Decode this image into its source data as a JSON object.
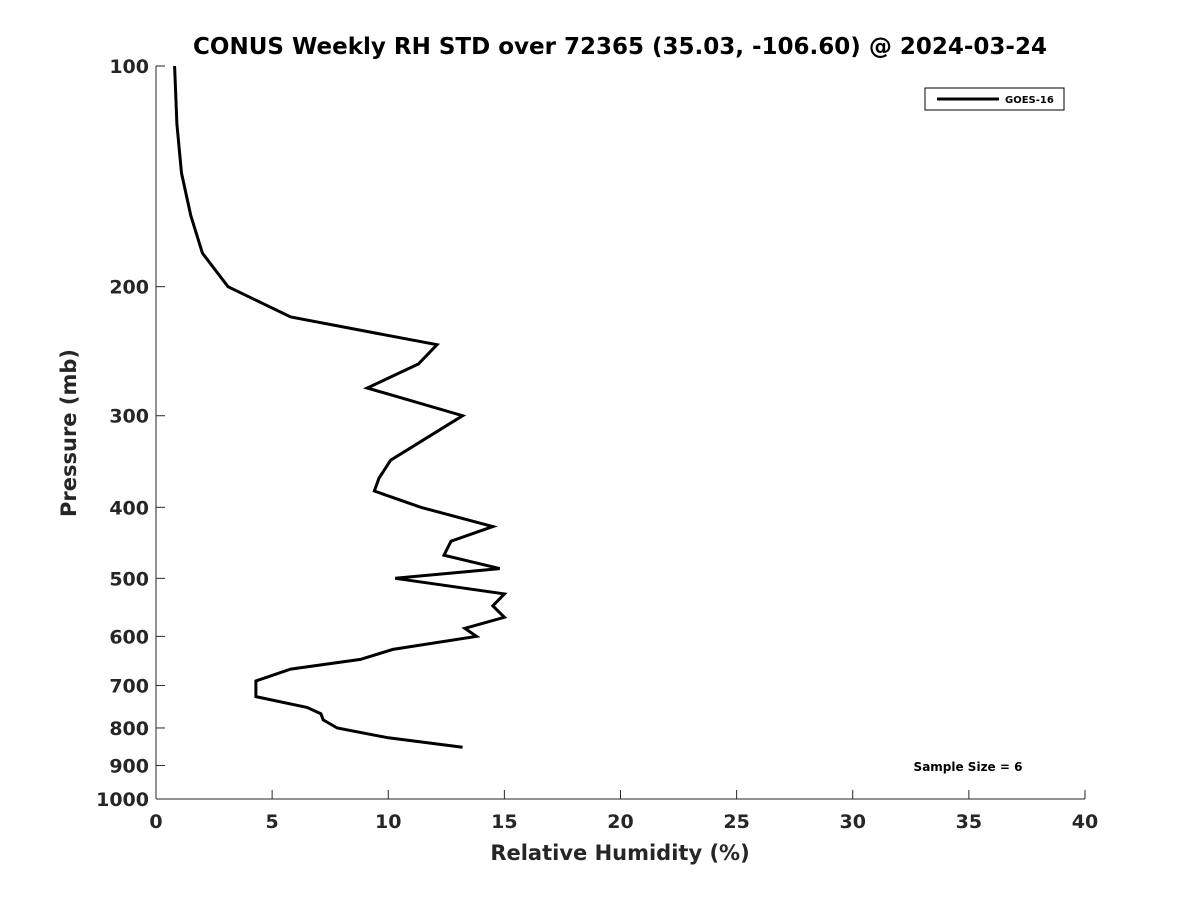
{
  "chart_data": {
    "type": "line",
    "title": "CONUS Weekly RH STD over 72365 (35.03, -106.60) @ 2024-03-24",
    "xlabel": "Relative Humidity (%)",
    "ylabel": "Pressure (mb)",
    "xlim": [
      0,
      40
    ],
    "ylim": [
      1000,
      100
    ],
    "y_scale": "log",
    "y_reversed": true,
    "grid": false,
    "x_ticks": [
      "0",
      "5",
      "10",
      "15",
      "20",
      "25",
      "30",
      "35",
      "40"
    ],
    "y_ticks": [
      "100",
      "200",
      "300",
      "400",
      "500",
      "600",
      "700",
      "800",
      "900",
      "1000"
    ],
    "legend_position": "top-right",
    "series": [
      {
        "name": "GOES-16",
        "color": "#000000",
        "x": [
          13.2,
          10.0,
          7.8,
          7.2,
          7.1,
          6.5,
          4.3,
          4.3,
          4.3,
          5.8,
          8.8,
          10.2,
          13.8,
          13.3,
          15.0,
          14.5,
          15.0,
          10.3,
          14.8,
          12.4,
          12.7,
          14.5,
          11.4,
          9.4,
          9.6,
          10.1,
          13.2,
          9.1,
          11.3,
          12.1,
          5.8,
          3.1,
          2.0,
          1.5,
          1.1,
          0.9,
          0.8
        ],
        "y": [
          850,
          825,
          800,
          780,
          765,
          750,
          725,
          705,
          690,
          665,
          645,
          625,
          600,
          585,
          565,
          545,
          525,
          500,
          485,
          465,
          445,
          425,
          400,
          380,
          365,
          345,
          300,
          275,
          255,
          240,
          220,
          200,
          180,
          160,
          140,
          120,
          100
        ]
      }
    ],
    "annotations": [
      "Sample Size = 6"
    ]
  }
}
